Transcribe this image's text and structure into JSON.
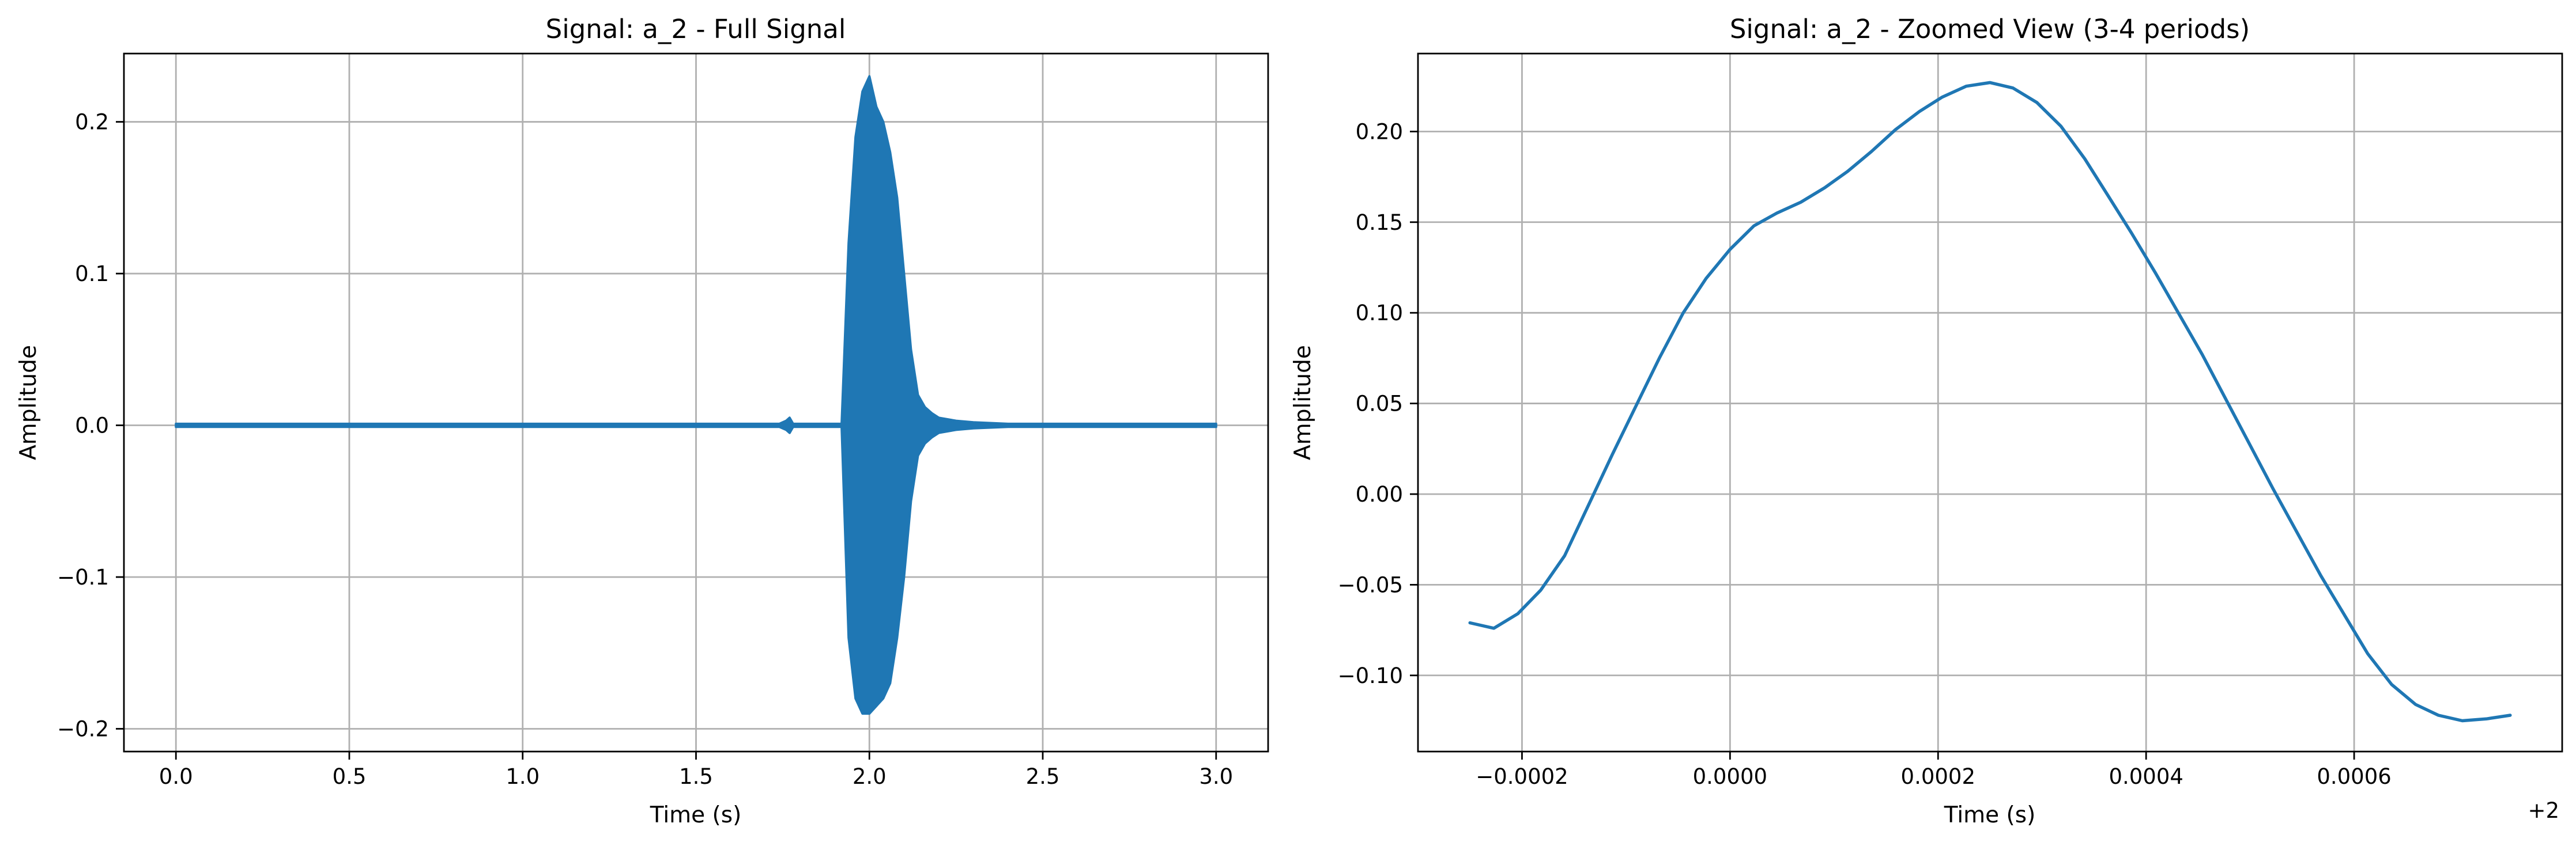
{
  "chart_data": [
    {
      "type": "line",
      "title": "Signal: a_2 - Full Signal",
      "xlabel": "Time (s)",
      "ylabel": "Amplitude",
      "xlim": [
        -0.15,
        3.15
      ],
      "ylim": [
        -0.215,
        0.245
      ],
      "x_ticks": [
        0.0,
        0.5,
        1.0,
        1.5,
        2.0,
        2.5,
        3.0
      ],
      "x_tick_labels": [
        "0.0",
        "0.5",
        "1.0",
        "1.5",
        "2.0",
        "2.5",
        "3.0"
      ],
      "y_ticks": [
        -0.2,
        -0.1,
        0.0,
        0.1,
        0.2
      ],
      "y_tick_labels": [
        "−0.2",
        "−0.1",
        "0.0",
        "0.1",
        "0.2"
      ],
      "grid": true,
      "color": "#1f77b4",
      "series": [
        {
          "x": [
            0.0,
            1.74,
            1.76,
            1.77,
            1.78,
            1.92,
            1.94,
            1.96,
            1.98,
            2.0,
            2.02,
            2.04,
            2.06,
            2.08,
            2.1,
            2.12,
            2.14,
            2.16,
            2.18,
            2.2,
            2.25,
            2.3,
            2.4,
            3.0
          ],
          "upper": [
            0.001,
            0.001,
            0.003,
            0.005,
            0.001,
            0.001,
            0.12,
            0.19,
            0.22,
            0.23,
            0.21,
            0.2,
            0.18,
            0.15,
            0.1,
            0.05,
            0.02,
            0.012,
            0.008,
            0.005,
            0.003,
            0.002,
            0.001,
            0.001
          ],
          "lower": [
            -0.001,
            -0.001,
            -0.003,
            -0.005,
            -0.001,
            -0.001,
            -0.14,
            -0.18,
            -0.19,
            -0.19,
            -0.185,
            -0.18,
            -0.17,
            -0.14,
            -0.1,
            -0.05,
            -0.02,
            -0.012,
            -0.008,
            -0.005,
            -0.003,
            -0.002,
            -0.001,
            -0.001
          ]
        }
      ]
    },
    {
      "type": "line",
      "title": "Signal: a_2 - Zoomed View (3-4 periods)",
      "xlabel": "Time (s)",
      "ylabel": "Amplitude",
      "x_offset_label": "+2",
      "xlim": [
        -0.0003,
        0.0008
      ],
      "ylim": [
        -0.142,
        0.243
      ],
      "x_ticks": [
        -0.0002,
        0.0,
        0.0002,
        0.0004,
        0.0006
      ],
      "x_tick_labels": [
        "−0.0002",
        "0.0000",
        "0.0002",
        "0.0004",
        "0.0006"
      ],
      "y_ticks": [
        -0.1,
        -0.05,
        0.0,
        0.05,
        0.1,
        0.15,
        0.2
      ],
      "y_tick_labels": [
        "−0.10",
        "−0.05",
        "0.00",
        "0.05",
        "0.10",
        "0.15",
        "0.20"
      ],
      "grid": true,
      "color": "#1f77b4",
      "series": [
        {
          "x": [
            -0.00025,
            -0.000227,
            -0.000204,
            -0.000182,
            -0.000159,
            -0.000136,
            -0.000113,
            -9.1e-05,
            -6.8e-05,
            -4.5e-05,
            -2.3e-05,
            0.0,
            2.3e-05,
            4.5e-05,
            6.8e-05,
            9.1e-05,
            0.000113,
            0.000136,
            0.000159,
            0.000182,
            0.000204,
            0.000227,
            0.00025,
            0.000272,
            0.000295,
            0.000318,
            0.000341,
            0.000363,
            0.000386,
            0.000409,
            0.000431,
            0.000454,
            0.000477,
            0.0005,
            0.000522,
            0.000545,
            0.000568,
            0.000591,
            0.000613,
            0.000636,
            0.000659,
            0.000681,
            0.000704,
            0.000727,
            0.00075
          ],
          "y": [
            -0.071,
            -0.074,
            -0.066,
            -0.053,
            -0.034,
            -0.006,
            0.022,
            0.048,
            0.075,
            0.1,
            0.119,
            0.135,
            0.148,
            0.155,
            0.161,
            0.169,
            0.178,
            0.189,
            0.201,
            0.211,
            0.219,
            0.225,
            0.227,
            0.224,
            0.216,
            0.203,
            0.185,
            0.165,
            0.144,
            0.122,
            0.1,
            0.077,
            0.052,
            0.027,
            0.003,
            -0.021,
            -0.045,
            -0.067,
            -0.088,
            -0.105,
            -0.116,
            -0.122,
            -0.125,
            -0.124,
            -0.122
          ]
        }
      ]
    }
  ]
}
